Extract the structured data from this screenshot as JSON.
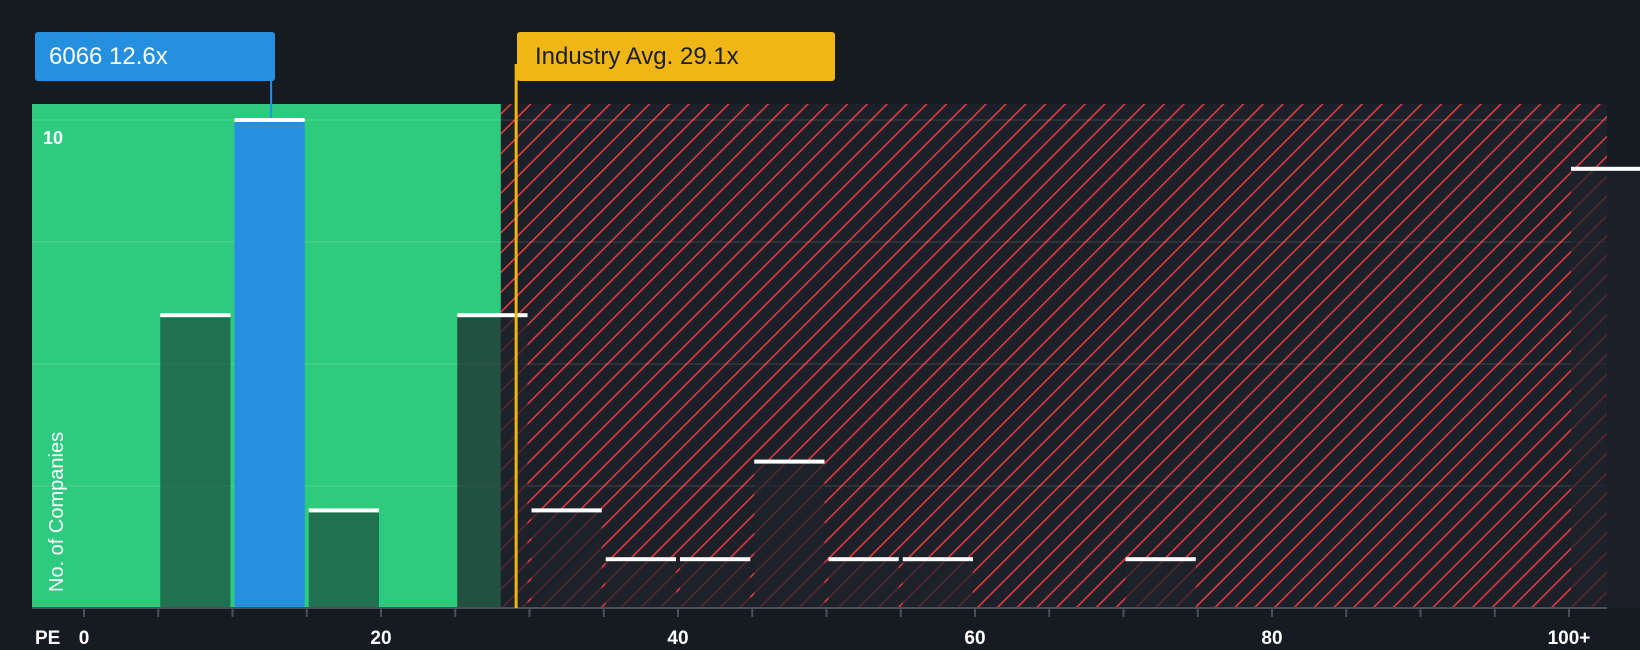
{
  "chart_data": {
    "type": "bar",
    "xlabel": "PE",
    "ylabel": "No. of Companies",
    "x_ticks": [
      "0",
      "20",
      "40",
      "60",
      "80",
      "100+"
    ],
    "y_ticks": [
      "10"
    ],
    "xlim": [
      0,
      100
    ],
    "ylim": [
      0,
      10.4
    ],
    "bin_width": 5,
    "bins": [
      {
        "x": 5,
        "count": 6
      },
      {
        "x": 10,
        "count": 10,
        "highlight": true
      },
      {
        "x": 15,
        "count": 2
      },
      {
        "x": 25,
        "count": 6
      },
      {
        "x": 30,
        "count": 2
      },
      {
        "x": 35,
        "count": 1
      },
      {
        "x": 40,
        "count": 1
      },
      {
        "x": 45,
        "count": 3
      },
      {
        "x": 50,
        "count": 1
      },
      {
        "x": 55,
        "count": 1
      },
      {
        "x": 70,
        "count": 1
      },
      {
        "x": 100,
        "count": 9
      }
    ],
    "company": {
      "label": "6066 12.6x",
      "value": 12.6
    },
    "industry_avg": {
      "label": "Industry Avg. 29.1x",
      "value": 29.1
    },
    "fair_zone_max": 28,
    "colors": {
      "background": "#161b22",
      "fair_zone": "#2ecb7f",
      "expensive_zone_hatch": "#e03a3e",
      "company_bar": "#2590e0",
      "industry_line": "#f0b616",
      "bar_cap": "#ffffff"
    }
  }
}
